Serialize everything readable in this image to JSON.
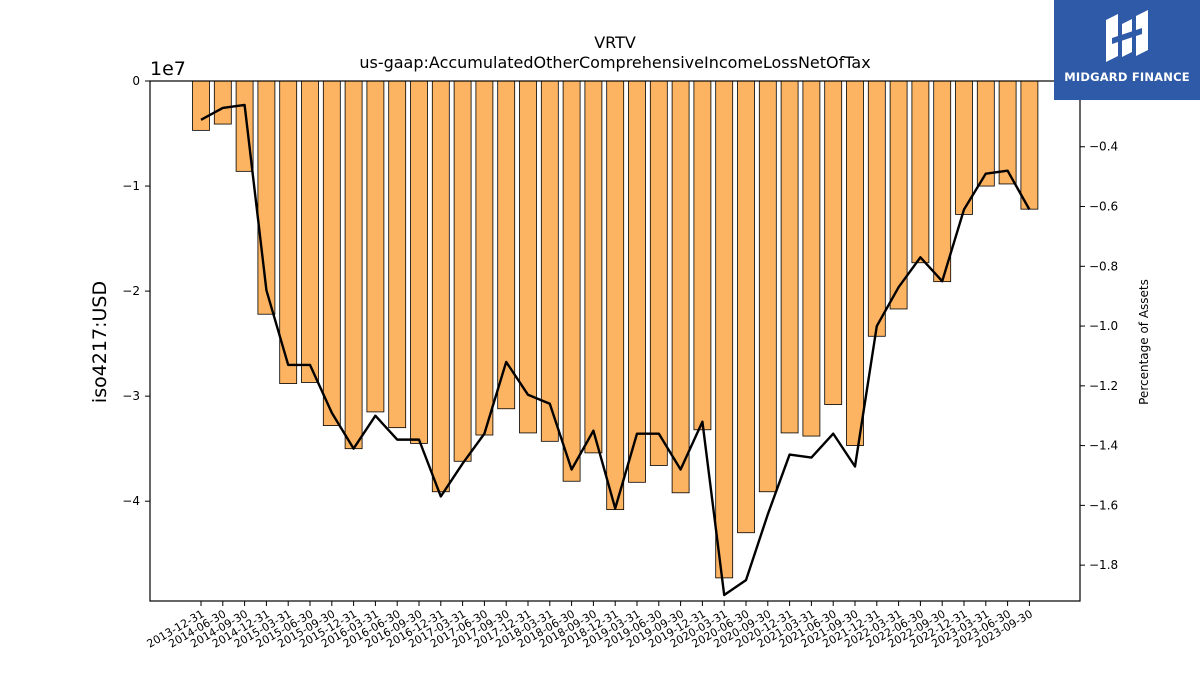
{
  "brand": {
    "name": "MIDGARD FINANCE"
  },
  "chart_data": {
    "type": "bar",
    "title": "VRTV",
    "subtitle": "us-gaap:AccumulatedOtherComprehensiveIncomeLossNetOfTax",
    "ylabel": "iso4217:USD",
    "y_scale_label": "1e7",
    "y2label": "Percentage of Assets",
    "ylim": [
      -4.95,
      0
    ],
    "y2lim": [
      -1.92,
      -0.18
    ],
    "yticks": [
      0,
      -1,
      -2,
      -3,
      -4
    ],
    "y2ticks": [
      -0.4,
      -0.6,
      -0.8,
      -1.0,
      -1.2,
      -1.4,
      -1.6,
      -1.8
    ],
    "bar_color": "#fdb462",
    "line_color": "#000000",
    "categories": [
      "2013-12-31",
      "2014-06-30",
      "2014-09-30",
      "2014-12-31",
      "2015-03-31",
      "2015-06-30",
      "2015-09-30",
      "2015-12-31",
      "2016-03-31",
      "2016-06-30",
      "2016-09-30",
      "2016-12-31",
      "2017-03-31",
      "2017-06-30",
      "2017-09-30",
      "2017-12-31",
      "2018-03-31",
      "2018-06-30",
      "2018-09-30",
      "2018-12-31",
      "2019-03-31",
      "2019-06-30",
      "2019-09-30",
      "2019-12-31",
      "2020-03-31",
      "2020-06-30",
      "2020-09-30",
      "2020-12-31",
      "2021-03-31",
      "2021-06-30",
      "2021-09-30",
      "2021-12-31",
      "2022-03-31",
      "2022-06-30",
      "2022-09-30",
      "2022-12-31",
      "2023-03-31",
      "2023-06-30",
      "2023-09-30"
    ],
    "series": [
      {
        "type": "bar",
        "axis": "left",
        "values": [
          -0.47,
          -0.41,
          -0.86,
          -2.22,
          -2.88,
          -2.87,
          -3.28,
          -3.5,
          -3.15,
          -3.3,
          -3.45,
          -3.91,
          -3.62,
          -3.37,
          -3.12,
          -3.35,
          -3.43,
          -3.81,
          -3.54,
          -4.08,
          -3.82,
          -3.66,
          -3.92,
          -3.32,
          -4.73,
          -4.3,
          -3.91,
          -3.35,
          -3.38,
          -3.08,
          -3.47,
          -2.43,
          -2.17,
          -1.73,
          -1.91,
          -1.27,
          -1.0,
          -0.98,
          -1.22
        ]
      },
      {
        "type": "line",
        "axis": "right",
        "values": [
          -0.31,
          -0.27,
          -0.26,
          -0.88,
          -1.13,
          -1.13,
          -1.29,
          -1.41,
          -1.3,
          -1.38,
          -1.38,
          -1.57,
          -1.46,
          -1.36,
          -1.12,
          -1.23,
          -1.26,
          -1.48,
          -1.35,
          -1.61,
          -1.36,
          -1.36,
          -1.48,
          -1.32,
          -1.9,
          -1.85,
          -1.63,
          -1.43,
          -1.44,
          -1.36,
          -1.47,
          -1.0,
          -0.87,
          -0.77,
          -0.85,
          -0.61,
          -0.49,
          -0.48,
          -0.61
        ]
      }
    ]
  }
}
